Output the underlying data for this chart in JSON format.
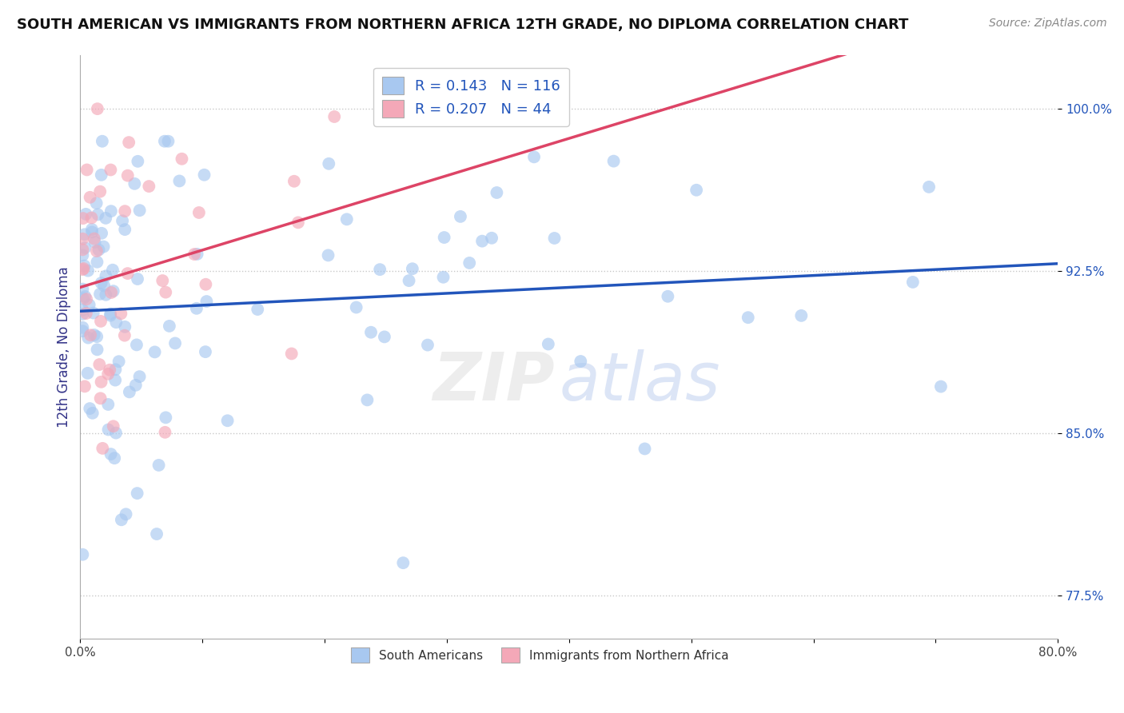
{
  "title": "SOUTH AMERICAN VS IMMIGRANTS FROM NORTHERN AFRICA 12TH GRADE, NO DIPLOMA CORRELATION CHART",
  "source": "Source: ZipAtlas.com",
  "ylabel": "12th Grade, No Diploma",
  "xlim": [
    0.0,
    80.0
  ],
  "ylim": [
    75.5,
    102.5
  ],
  "yticks": [
    77.5,
    85.0,
    92.5,
    100.0
  ],
  "ytick_labels": [
    "77.5%",
    "85.0%",
    "92.5%",
    "100.0%"
  ],
  "xticks": [
    0.0,
    10.0,
    20.0,
    30.0,
    40.0,
    50.0,
    60.0,
    70.0,
    80.0
  ],
  "xtick_labels": [
    "0.0%",
    "",
    "",
    "",
    "",
    "",
    "",
    "",
    "80.0%"
  ],
  "blue_R": 0.143,
  "blue_N": 116,
  "pink_R": 0.207,
  "pink_N": 44,
  "blue_color": "#A8C8F0",
  "pink_color": "#F4A8B8",
  "blue_line_color": "#2255BB",
  "pink_line_color": "#DD4466",
  "watermark_zip": "ZIP",
  "watermark_atlas": "atlas",
  "legend_label_blue": "South Americans",
  "legend_label_pink": "Immigrants from Northern Africa",
  "blue_seed": 1234,
  "pink_seed": 5678
}
